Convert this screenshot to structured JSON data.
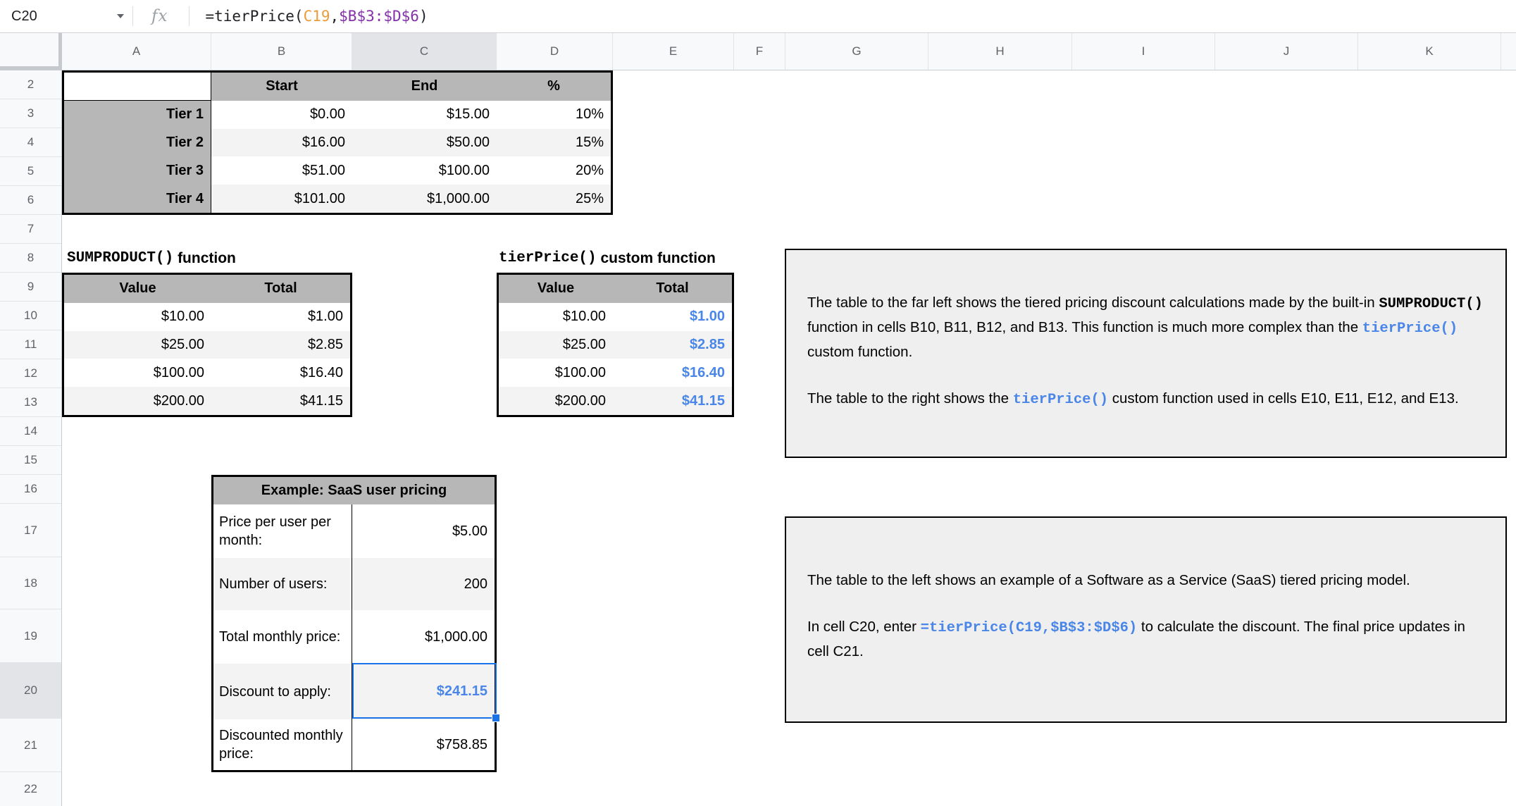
{
  "formula_bar": {
    "cell_ref": "C20",
    "fx": "fx",
    "formula": [
      {
        "text": "=tierPrice(",
        "style": "black"
      },
      {
        "text": "C19",
        "style": "orange"
      },
      {
        "text": ",",
        "style": "black"
      },
      {
        "text": "$B$3:$D$6",
        "style": "purple"
      },
      {
        "text": ")",
        "style": "black"
      }
    ]
  },
  "grid": {
    "column_headers": [
      "A",
      "B",
      "C",
      "D",
      "E",
      "F",
      "G",
      "H",
      "I",
      "J",
      "K"
    ],
    "row_headers": [
      "2",
      "3",
      "4",
      "5",
      "6",
      "7",
      "8",
      "9",
      "10",
      "11",
      "12",
      "13",
      "14",
      "15",
      "16",
      "17",
      "18",
      "19",
      "20",
      "21",
      "22"
    ],
    "selected_column": "C",
    "selected_row": "20"
  },
  "tier_table": {
    "headers": {
      "start": "Start",
      "end": "End",
      "pct": "%"
    },
    "rows": [
      {
        "label": "Tier 1",
        "start": "$0.00",
        "end": "$15.00",
        "pct": "10%"
      },
      {
        "label": "Tier 2",
        "start": "$16.00",
        "end": "$50.00",
        "pct": "15%"
      },
      {
        "label": "Tier 3",
        "start": "$51.00",
        "end": "$100.00",
        "pct": "20%"
      },
      {
        "label": "Tier 4",
        "start": "$101.00",
        "end": "$1,000.00",
        "pct": "25%"
      }
    ]
  },
  "sumproduct_table": {
    "title": [
      {
        "text": "SUMPRODUCT()",
        "style": "mono"
      },
      {
        "text": " function",
        "style": "sans"
      }
    ],
    "headers": {
      "value": "Value",
      "total": "Total"
    },
    "rows": [
      {
        "value": "$10.00",
        "total": "$1.00"
      },
      {
        "value": "$25.00",
        "total": "$2.85"
      },
      {
        "value": "$100.00",
        "total": "$16.40"
      },
      {
        "value": "$200.00",
        "total": "$41.15"
      }
    ]
  },
  "tierprice_table": {
    "title": [
      {
        "text": "tierPrice()",
        "style": "mono"
      },
      {
        "text": " custom function",
        "style": "sans"
      }
    ],
    "headers": {
      "value": "Value",
      "total": "Total"
    },
    "rows": [
      {
        "value": "$10.00",
        "total": "$1.00"
      },
      {
        "value": "$25.00",
        "total": "$2.85"
      },
      {
        "value": "$100.00",
        "total": "$16.40"
      },
      {
        "value": "$200.00",
        "total": "$41.15"
      }
    ]
  },
  "saas_table": {
    "title": "Example: SaaS user pricing",
    "rows": [
      {
        "label": "Price per user per month:",
        "value": "$5.00"
      },
      {
        "label": "Number of users:",
        "value": "200"
      },
      {
        "label": "Total monthly price:",
        "value": "$1,000.00"
      },
      {
        "label": "Discount to apply:",
        "value": "$241.15"
      },
      {
        "label": "Discounted monthly price:",
        "value": "$758.85"
      }
    ]
  },
  "text_box_1": {
    "p1": [
      {
        "text": "The table to the far left shows the tiered pricing discount calculations made by the built-in ",
        "style": "plain"
      },
      {
        "text": "SUMPRODUCT()",
        "style": "mono"
      },
      {
        "text": " function in cells B10, B11, B12, and B13. This function is much more complex than the ",
        "style": "plain"
      },
      {
        "text": "tierPrice()",
        "style": "blue-mono"
      },
      {
        "text": " custom function.",
        "style": "plain"
      }
    ],
    "p2": [
      {
        "text": "The table to the right shows the ",
        "style": "plain"
      },
      {
        "text": "tierPrice()",
        "style": "blue-mono"
      },
      {
        "text": " custom function used in cells E10, E11, E12, and E13.",
        "style": "plain"
      }
    ]
  },
  "text_box_2": {
    "p1": [
      {
        "text": "The table to the left shows an example of a Software as a Service (SaaS) tiered pricing model.",
        "style": "plain"
      }
    ],
    "p2": [
      {
        "text": "In cell C20, enter ",
        "style": "plain"
      },
      {
        "text": "=tierPrice(C19,$B$3:$D$6)",
        "style": "blue-mono"
      },
      {
        "text": " to calculate the discount. The final price updates in cell C21.",
        "style": "plain"
      }
    ]
  },
  "colors": {
    "accent_blue": "#4a86e8",
    "selection_blue": "#1a73e8",
    "formula_ref_orange": "#ec9b3b",
    "formula_ref_purple": "#8430a8",
    "table_header_gray": "#b7b7b7",
    "row_band_gray": "#f3f3f3",
    "textbox_gray": "#efefef"
  }
}
